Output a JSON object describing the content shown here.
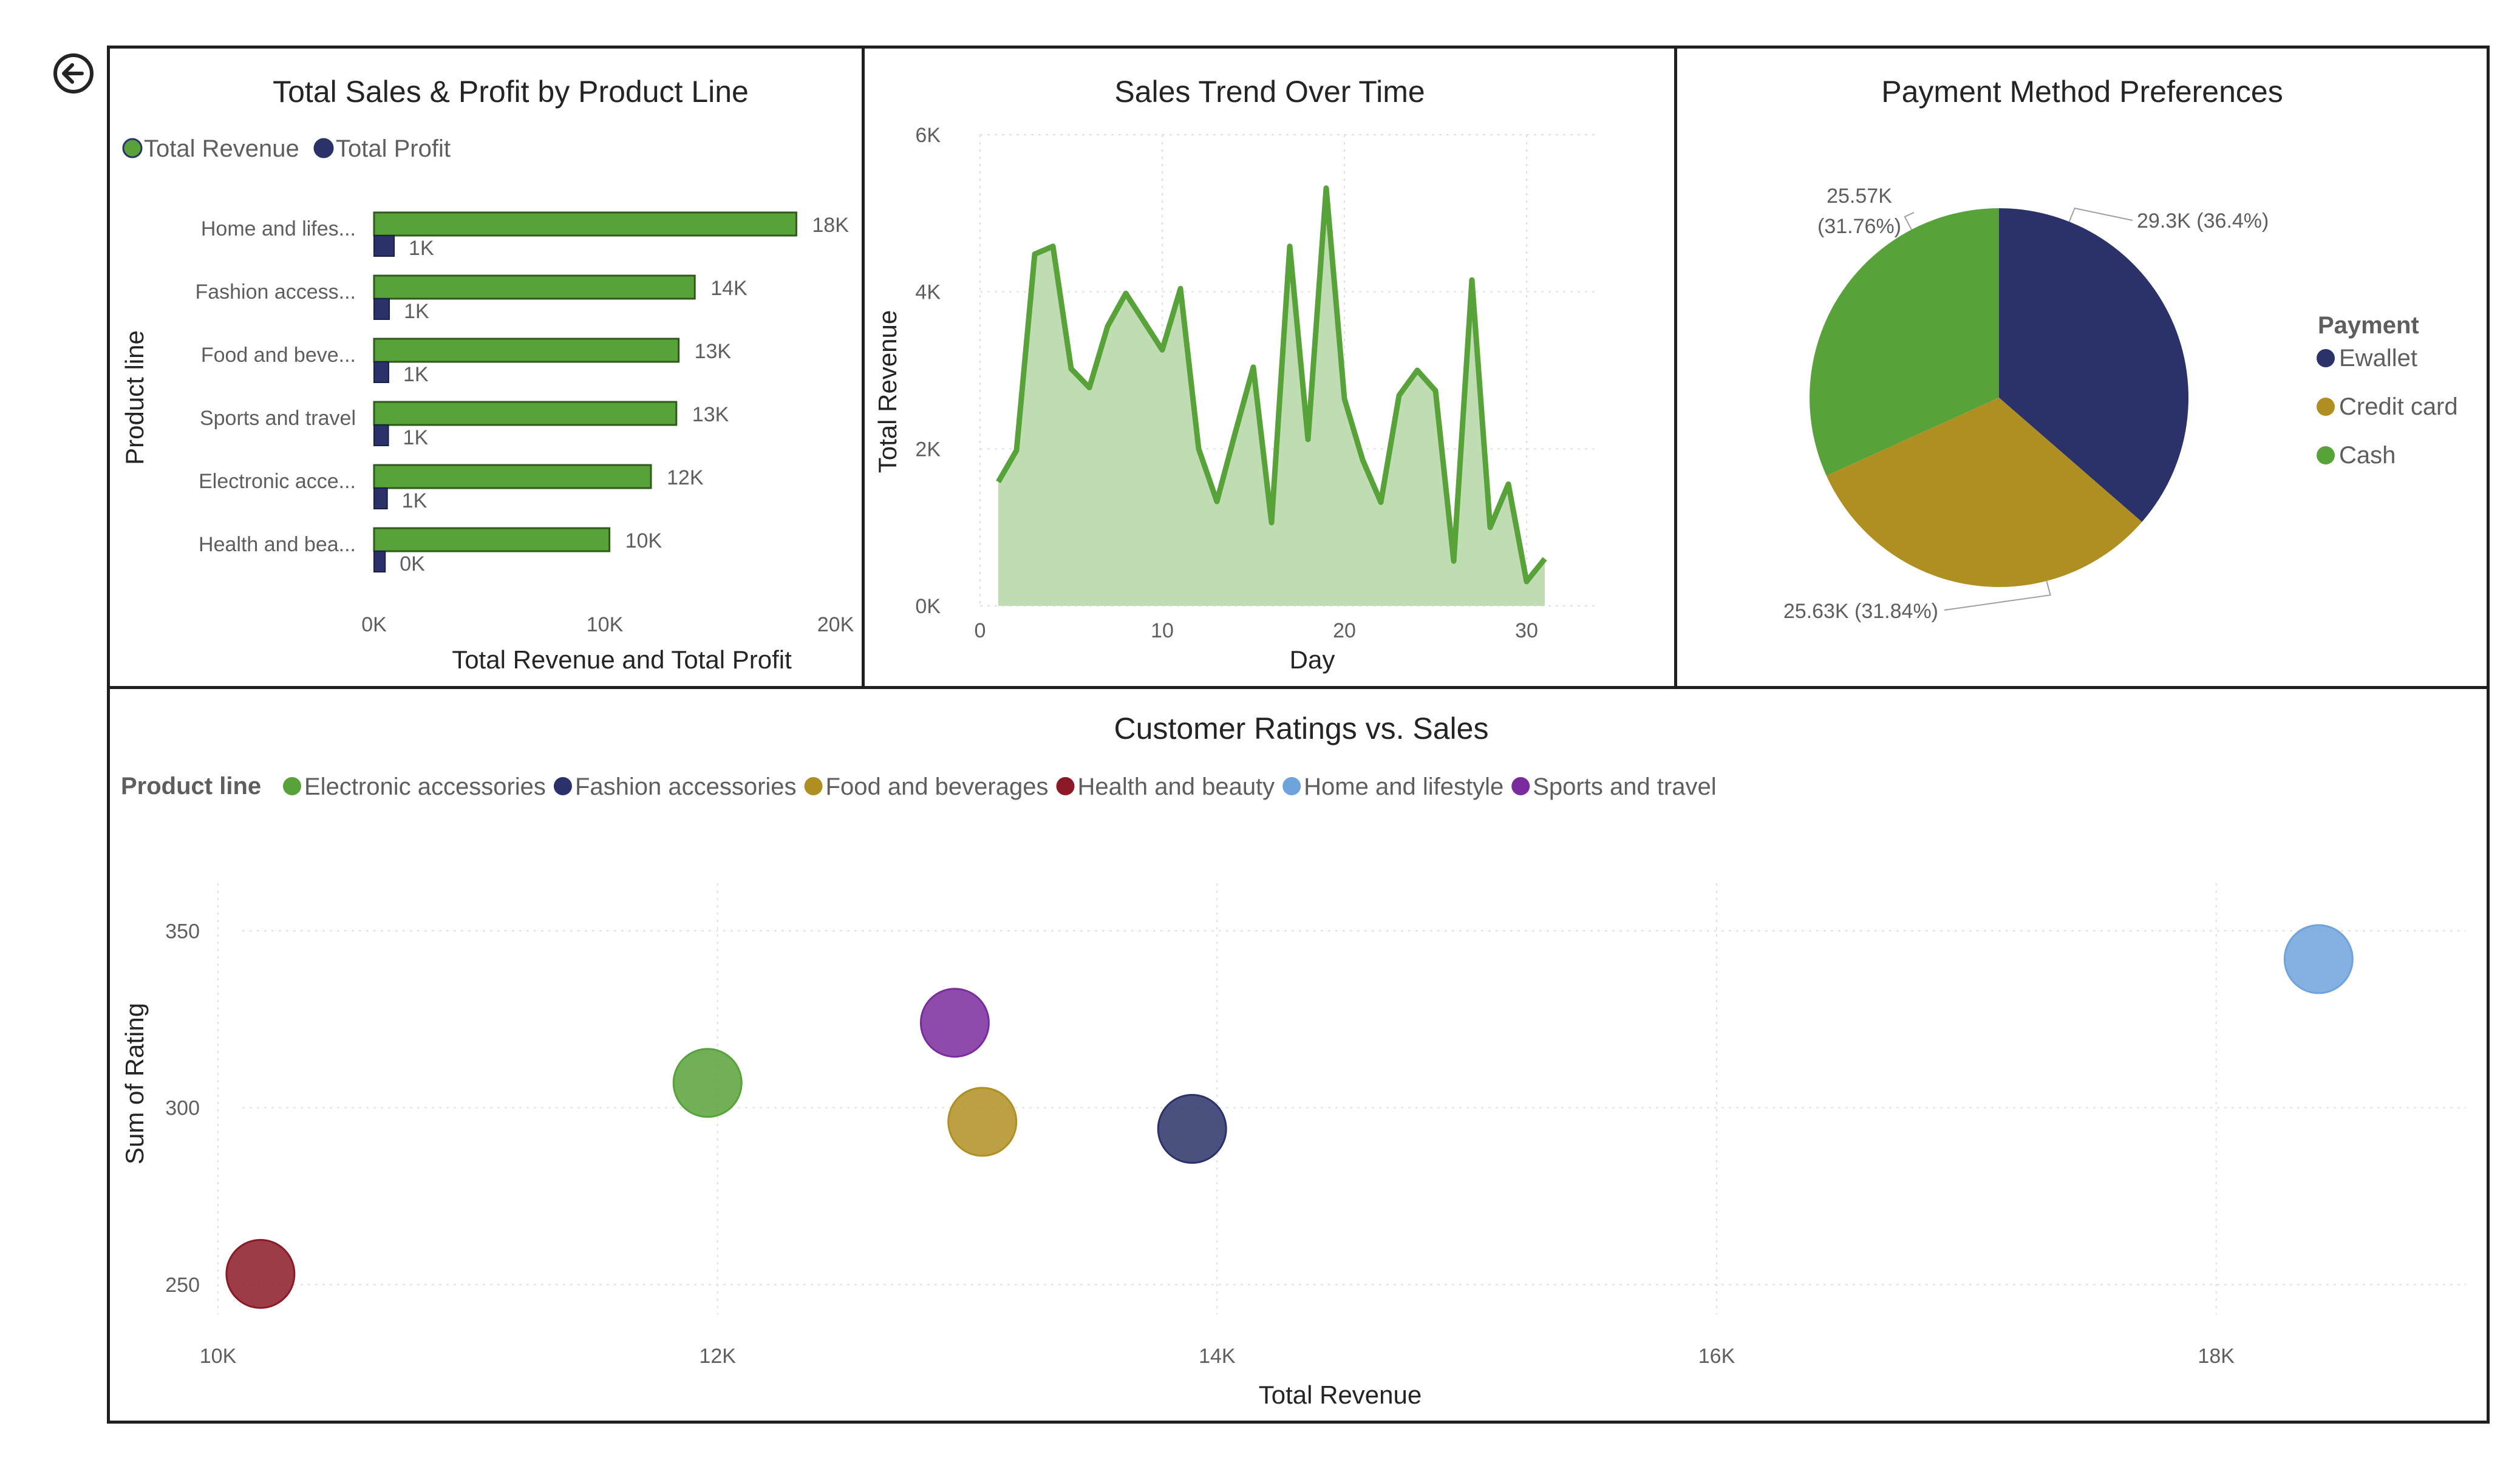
{
  "nav": {
    "back_icon": "arrow-left-circle-icon"
  },
  "colors": {
    "green": "#58a23a",
    "navy": "#2b3269",
    "gold": "#b08f22",
    "maroon": "#8b1a26",
    "lightblue": "#6fa3dc",
    "purple": "#7a2c9e",
    "area": "#bfdcb3"
  },
  "bar_chart": {
    "title": "Total Sales & Profit by Product Line",
    "legend": [
      "Total Revenue",
      "Total Profit"
    ],
    "xlabel": "Total Revenue and Total Profit",
    "ylabel": "Product line"
  },
  "line_chart": {
    "title": "Sales Trend Over Time",
    "xlabel": "Day",
    "ylabel": "Total Revenue"
  },
  "pie_chart": {
    "title": "Payment Method Preferences",
    "legend_title": "Payment"
  },
  "scatter_chart": {
    "title": "Customer Ratings vs. Sales",
    "legend_title": "Product line",
    "xlabel": "Total Revenue",
    "ylabel": "Sum of Rating"
  },
  "chart_data": [
    {
      "type": "bar",
      "orientation": "horizontal",
      "title": "Total Sales & Profit by Product Line",
      "categories": [
        "Home and lifes...",
        "Fashion access...",
        "Food and beve...",
        "Sports and travel",
        "Electronic acce...",
        "Health and bea..."
      ],
      "series": [
        {
          "name": "Total Revenue",
          "values": [
            18300,
            13900,
            13200,
            13100,
            12000,
            10200
          ],
          "labels": [
            "18K",
            "14K",
            "13K",
            "13K",
            "12K",
            "10K"
          ],
          "color": "#58a23a"
        },
        {
          "name": "Total Profit",
          "values": [
            870,
            660,
            630,
            620,
            570,
            480
          ],
          "labels": [
            "1K",
            "1K",
            "1K",
            "1K",
            "1K",
            "0K"
          ],
          "color": "#2b3269"
        }
      ],
      "xlabel": "Total Revenue and Total Profit",
      "ylabel": "Product line",
      "xlim": [
        0,
        20000
      ],
      "xticks": [
        0,
        10000,
        20000
      ],
      "xtick_labels": [
        "0K",
        "10K",
        "20K"
      ],
      "legend": "top-left",
      "grid": false
    },
    {
      "type": "area",
      "title": "Sales Trend Over Time",
      "x": [
        1,
        2,
        3,
        4,
        5,
        6,
        7,
        8,
        9,
        10,
        11,
        12,
        13,
        14,
        15,
        16,
        17,
        18,
        19,
        20,
        21,
        22,
        23,
        24,
        25,
        26,
        27,
        28,
        29,
        30,
        31
      ],
      "y": [
        1580,
        1980,
        4480,
        4580,
        3020,
        2780,
        3560,
        3980,
        3620,
        3260,
        4040,
        2000,
        1330,
        2200,
        3040,
        1060,
        4580,
        2120,
        5320,
        2640,
        1860,
        1320,
        2680,
        3000,
        2740,
        570,
        4150,
        1000,
        1550,
        310,
        600
      ],
      "series_name": "Total Revenue",
      "color": "#58a23a",
      "xlabel": "Day",
      "ylabel": "Total Revenue",
      "xlim": [
        0,
        34
      ],
      "ylim": [
        0,
        6000
      ],
      "xticks": [
        0,
        10,
        20,
        30
      ],
      "yticks": [
        0,
        2000,
        4000,
        6000
      ],
      "ytick_labels": [
        "0K",
        "2K",
        "4K",
        "6K"
      ],
      "grid": true
    },
    {
      "type": "pie",
      "title": "Payment Method Preferences",
      "legend_title": "Payment",
      "slices": [
        {
          "name": "Ewallet",
          "value": 29300,
          "label": "29.3K (36.4%)",
          "color": "#2b3269"
        },
        {
          "name": "Credit card",
          "value": 25630,
          "label": "25.63K (31.84%)",
          "color": "#b08f22"
        },
        {
          "name": "Cash",
          "value": 25570,
          "label_line1": "25.57K",
          "label_line2": "(31.76%)",
          "color": "#58a23a"
        }
      ],
      "legend": "right"
    },
    {
      "type": "scatter",
      "title": "Customer Ratings vs. Sales",
      "legend_title": "Product line",
      "points": [
        {
          "name": "Electronic accessories",
          "x": 11960,
          "y": 307,
          "color": "#58a23a"
        },
        {
          "name": "Fashion accessories",
          "x": 13900,
          "y": 294,
          "color": "#2b3269"
        },
        {
          "name": "Food and beverages",
          "x": 13060,
          "y": 296,
          "color": "#b08f22"
        },
        {
          "name": "Health and beauty",
          "x": 10170,
          "y": 253,
          "color": "#8b1a26"
        },
        {
          "name": "Home and lifestyle",
          "x": 18410,
          "y": 342,
          "color": "#6fa3dc"
        },
        {
          "name": "Sports and travel",
          "x": 12950,
          "y": 324,
          "color": "#7a2c9e"
        }
      ],
      "xlabel": "Total Revenue",
      "ylabel": "Sum of Rating",
      "xlim": [
        10000,
        19000
      ],
      "ylim": [
        245,
        360
      ],
      "xticks": [
        10000,
        12000,
        14000,
        16000,
        18000
      ],
      "xtick_labels": [
        "10K",
        "12K",
        "14K",
        "16K",
        "18K"
      ],
      "yticks": [
        250,
        300,
        350
      ],
      "legend": "top-left",
      "grid": true
    }
  ]
}
